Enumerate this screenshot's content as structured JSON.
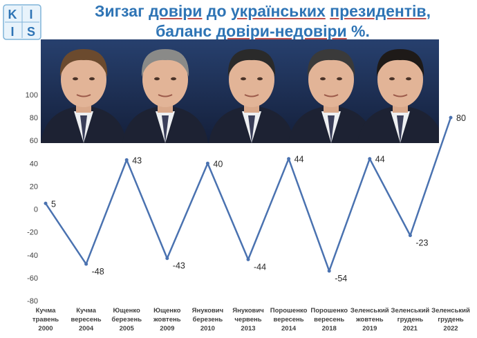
{
  "logo": {
    "letters": [
      "K",
      "I",
      "I",
      "S"
    ]
  },
  "title": {
    "line1_parts": [
      {
        "text": "Зигзаг ",
        "u": false
      },
      {
        "text": "довіри",
        "u": true
      },
      {
        "text": " до ",
        "u": false
      },
      {
        "text": "українських",
        "u": true
      },
      {
        "text": " ",
        "u": false
      },
      {
        "text": "президентів",
        "u": true
      },
      {
        "text": ",",
        "u": false
      }
    ],
    "line2_parts": [
      {
        "text": "баланс ",
        "u": false
      },
      {
        "text": "довіри-недовіри",
        "u": true
      },
      {
        "text": " %.",
        "u": false
      }
    ]
  },
  "colors": {
    "title": "#2e74b5",
    "line": "#4a72b0",
    "photo_bg": "#1e2f52"
  },
  "chart_data": {
    "type": "line",
    "title": "",
    "xlabel": "",
    "ylabel": "",
    "ylim": [
      -80,
      100
    ],
    "yticks": [
      100,
      80,
      60,
      40,
      20,
      0,
      -20,
      -40,
      -60,
      -80
    ],
    "grid": false,
    "legend": "none",
    "categories": [
      [
        "Кучма",
        "травень",
        "2000"
      ],
      [
        "Кучма",
        "вересень",
        "2004"
      ],
      [
        "Ющенко",
        "березень",
        "2005"
      ],
      [
        "Ющенко",
        "жовтень",
        "2009"
      ],
      [
        "Янукович",
        "березень",
        "2010"
      ],
      [
        "Янукович",
        "червень",
        "2013"
      ],
      [
        "Порошенко",
        "вересень",
        "2014"
      ],
      [
        "Порошенко",
        "вересень",
        "2018"
      ],
      [
        "Зеленський",
        "жовтень",
        "2019"
      ],
      [
        "Зеленський",
        "грудень",
        "2021"
      ],
      [
        "Зеленський",
        "грудень",
        "2022"
      ]
    ],
    "values": [
      5,
      -48,
      43,
      -43,
      40,
      -44,
      44,
      -54,
      44,
      -23,
      80
    ],
    "data_labels": [
      "5",
      "-48",
      "43",
      "-43",
      "40",
      "-44",
      "44",
      "-54",
      "44",
      "-23",
      "80"
    ]
  }
}
